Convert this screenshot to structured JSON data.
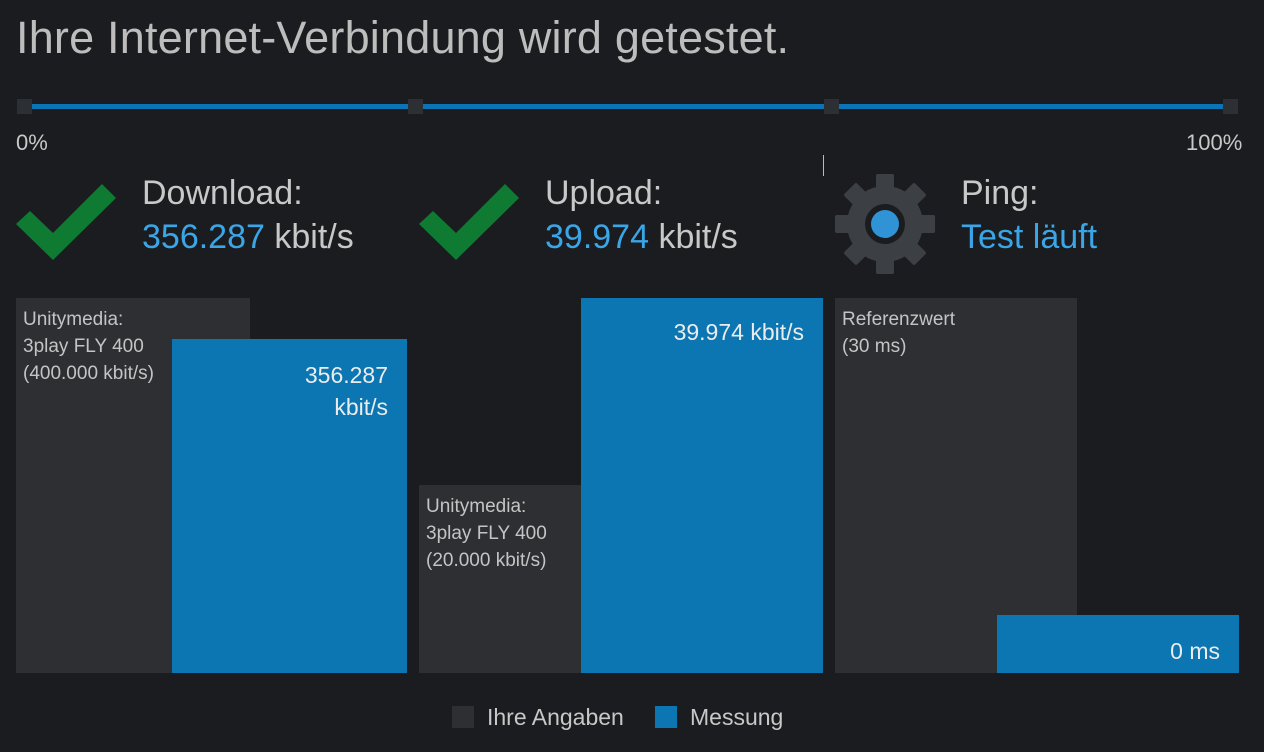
{
  "title": "Ihre Internet-Verbindung wird getestet.",
  "progress": {
    "start_label": "0%",
    "end_label": "100%",
    "fill_fraction": 1.0,
    "color": "#0a74b4"
  },
  "metrics": {
    "download": {
      "label": "Download:",
      "value": "356.287",
      "unit": "kbit/s",
      "status_icon": "check-icon",
      "ref_text": "Unitymedia:\n3play FLY 400\n(400.000 kbit/s)",
      "meas_text": "356.287\nkbit/s",
      "ref_value_kbit": 400000,
      "meas_value_kbit": 356287
    },
    "upload": {
      "label": "Upload:",
      "value": "39.974",
      "unit": "kbit/s",
      "status_icon": "check-icon",
      "ref_text": "Unitymedia:\n3play FLY 400\n(20.000 kbit/s)",
      "meas_text": "39.974 kbit/s",
      "ref_value_kbit": 20000,
      "meas_value_kbit": 39974
    },
    "ping": {
      "label": "Ping:",
      "status": "Test läuft",
      "status_icon": "gear-icon",
      "ref_text": "Referenzwert\n(30 ms)",
      "meas_text": "0 ms",
      "ref_value_ms": 30,
      "meas_value_ms": 0
    }
  },
  "legend": {
    "ref_label": "Ihre Angaben",
    "meas_label": "Messung"
  },
  "colors": {
    "accent": "#3aa6e8",
    "measure_bar": "#0b76b2",
    "reference_bar": "#2d2f33",
    "check": "#0e7a32",
    "gear": "#3c3f44",
    "gear_center": "#2f93d6"
  }
}
